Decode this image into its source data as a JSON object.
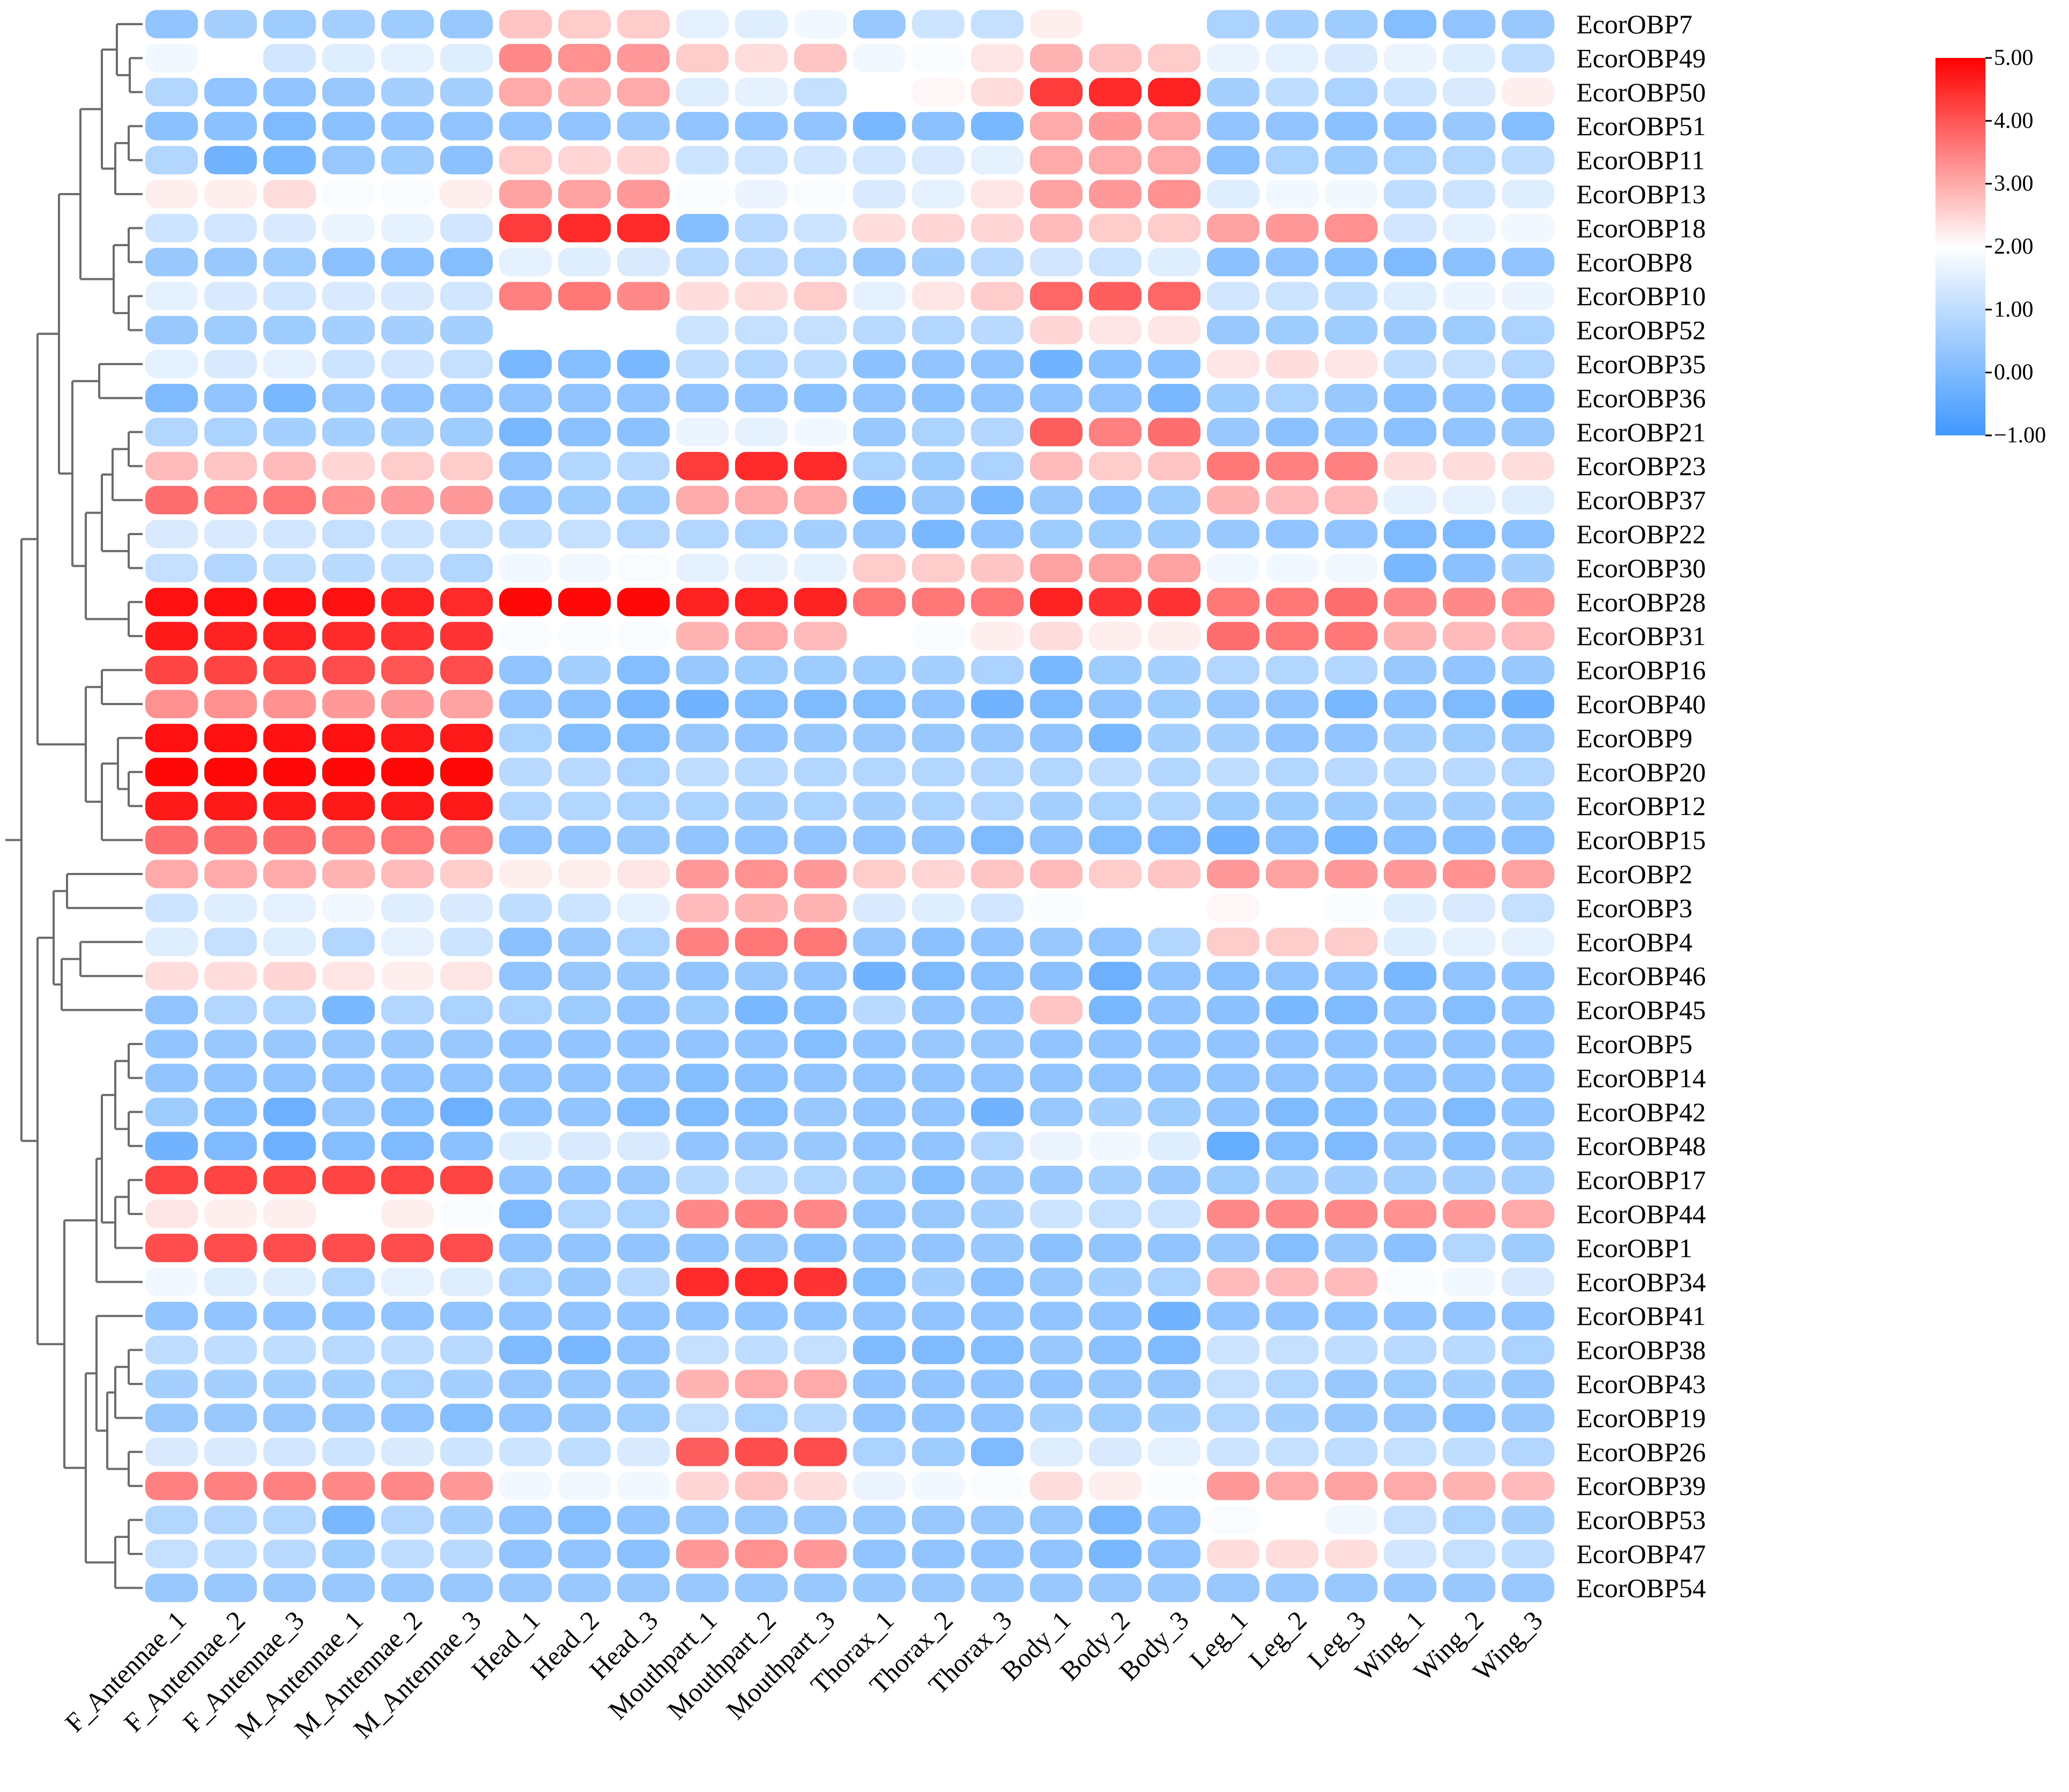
{
  "chart_data": {
    "type": "heatmap",
    "title": "",
    "colormap": {
      "low": "#3f98ff",
      "mid": "#ffffff",
      "high": "#ff0000",
      "min": -1.0,
      "mid_value": 2.0,
      "max": 5.0
    },
    "colorbar_ticks": [
      "5.00",
      "4.00",
      "3.00",
      "2.00",
      "1.00",
      "0.00",
      "−1.00"
    ],
    "colorbar_tick_values": [
      5,
      4,
      3,
      2,
      1,
      0,
      -1
    ],
    "columns": [
      "F_Antennae_1",
      "F_Antennae_2",
      "F_Antennae_3",
      "M_Antennae_1",
      "M_Antennae_2",
      "M_Antennae_3",
      "Head_1",
      "Head_2",
      "Head_3",
      "Mouthpart_1",
      "Mouthpart_2",
      "Mouthpart_3",
      "Thorax_1",
      "Thorax_2",
      "Thorax_3",
      "Body_1",
      "Body_2",
      "Body_3",
      "Leg_1",
      "Leg_2",
      "Leg_3",
      "Wing_1",
      "Wing_2",
      "Wing_3"
    ],
    "rows": [
      "EcorOBP7",
      "EcorOBP49",
      "EcorOBP50",
      "EcorOBP51",
      "EcorOBP11",
      "EcorOBP13",
      "EcorOBP18",
      "EcorOBP8",
      "EcorOBP10",
      "EcorOBP52",
      "EcorOBP35",
      "EcorOBP36",
      "EcorOBP21",
      "EcorOBP23",
      "EcorOBP37",
      "EcorOBP22",
      "EcorOBP30",
      "EcorOBP28",
      "EcorOBP31",
      "EcorOBP16",
      "EcorOBP40",
      "EcorOBP9",
      "EcorOBP20",
      "EcorOBP12",
      "EcorOBP15",
      "EcorOBP2",
      "EcorOBP3",
      "EcorOBP4",
      "EcorOBP46",
      "EcorOBP45",
      "EcorOBP5",
      "EcorOBP14",
      "EcorOBP42",
      "EcorOBP48",
      "EcorOBP17",
      "EcorOBP44",
      "EcorOBP1",
      "EcorOBP34",
      "EcorOBP41",
      "EcorOBP38",
      "EcorOBP43",
      "EcorOBP19",
      "EcorOBP26",
      "EcorOBP39",
      "EcorOBP53",
      "EcorOBP47",
      "EcorOBP54"
    ],
    "values": [
      [
        0.3,
        0.6,
        0.5,
        0.6,
        0.5,
        0.4,
        2.7,
        2.6,
        2.6,
        1.6,
        1.5,
        1.8,
        0.4,
        1.2,
        1.1,
        2.2,
        2.0,
        2.0,
        0.7,
        0.6,
        0.5,
        0.1,
        0.3,
        0.4
      ],
      [
        1.8,
        2.0,
        1.3,
        1.5,
        1.6,
        1.5,
        3.4,
        3.3,
        3.2,
        2.6,
        2.4,
        2.7,
        1.8,
        1.9,
        2.3,
        2.9,
        2.7,
        2.6,
        1.7,
        1.6,
        1.4,
        1.7,
        1.5,
        1.0
      ],
      [
        0.8,
        0.3,
        0.3,
        0.4,
        0.6,
        0.6,
        3.0,
        2.9,
        3.0,
        1.5,
        1.6,
        1.1,
        2.0,
        2.1,
        2.4,
        4.3,
        4.5,
        4.6,
        0.6,
        1.0,
        0.7,
        1.2,
        1.4,
        2.2
      ],
      [
        0.2,
        0.2,
        0.0,
        0.2,
        0.3,
        0.3,
        0.3,
        0.3,
        0.4,
        0.3,
        0.3,
        0.3,
        -0.1,
        0.2,
        -0.1,
        3.0,
        3.2,
        3.0,
        0.3,
        0.3,
        0.2,
        0.3,
        0.4,
        0.1
      ],
      [
        0.8,
        -0.2,
        -0.1,
        0.4,
        0.5,
        0.2,
        2.6,
        2.5,
        2.5,
        1.2,
        1.2,
        1.3,
        1.3,
        1.4,
        1.6,
        3.0,
        3.0,
        3.0,
        0.2,
        0.7,
        0.5,
        0.7,
        0.8,
        1.0
      ],
      [
        2.2,
        2.2,
        2.4,
        1.9,
        1.9,
        2.2,
        3.1,
        3.1,
        3.2,
        1.9,
        1.7,
        1.9,
        1.4,
        1.6,
        2.3,
        3.1,
        3.2,
        3.3,
        1.5,
        1.8,
        1.8,
        1.0,
        1.2,
        1.5
      ],
      [
        1.2,
        1.3,
        1.4,
        1.7,
        1.6,
        1.3,
        4.3,
        4.5,
        4.5,
        0.1,
        0.9,
        1.2,
        2.4,
        2.5,
        2.5,
        2.8,
        2.6,
        2.6,
        3.1,
        3.2,
        3.3,
        1.3,
        1.6,
        1.8
      ],
      [
        0.4,
        0.4,
        0.5,
        0.2,
        0.2,
        0.1,
        1.6,
        1.5,
        1.4,
        0.9,
        0.9,
        0.8,
        0.4,
        0.6,
        0.9,
        1.3,
        1.2,
        1.5,
        0.2,
        0.3,
        0.2,
        0.0,
        0.2,
        0.3
      ],
      [
        1.6,
        1.4,
        1.3,
        1.4,
        1.4,
        1.3,
        3.5,
        3.6,
        3.4,
        2.4,
        2.4,
        2.6,
        1.6,
        2.3,
        2.6,
        3.8,
        3.9,
        3.8,
        1.3,
        1.2,
        1.0,
        1.5,
        1.7,
        1.7
      ],
      [
        0.4,
        0.5,
        0.5,
        0.6,
        0.6,
        0.6,
        2.0,
        2.0,
        2.0,
        1.2,
        1.1,
        1.1,
        0.9,
        0.8,
        0.9,
        2.5,
        2.3,
        2.3,
        0.4,
        0.5,
        0.5,
        0.4,
        0.5,
        0.7
      ],
      [
        1.6,
        1.4,
        1.6,
        1.2,
        1.3,
        1.1,
        -0.1,
        0.1,
        -0.1,
        1.0,
        0.8,
        1.0,
        0.2,
        0.3,
        0.3,
        -0.2,
        0.2,
        0.2,
        2.3,
        2.4,
        2.3,
        1.0,
        1.1,
        0.8
      ],
      [
        0.0,
        0.3,
        -0.1,
        0.4,
        0.3,
        0.3,
        0.3,
        0.3,
        0.3,
        0.3,
        0.3,
        0.2,
        0.3,
        0.2,
        0.3,
        0.3,
        0.3,
        -0.1,
        0.5,
        0.7,
        0.4,
        0.2,
        0.3,
        0.2
      ],
      [
        0.8,
        0.7,
        0.6,
        0.6,
        0.6,
        0.5,
        -0.1,
        0.2,
        0.2,
        1.7,
        1.6,
        1.8,
        0.4,
        0.7,
        0.8,
        3.9,
        3.5,
        3.7,
        0.4,
        0.2,
        0.3,
        0.2,
        0.3,
        0.4
      ],
      [
        2.8,
        2.7,
        2.8,
        2.5,
        2.6,
        2.6,
        0.3,
        0.8,
        0.9,
        4.3,
        4.5,
        4.5,
        0.7,
        0.5,
        0.7,
        2.8,
        2.6,
        2.7,
        3.6,
        3.5,
        3.5,
        2.4,
        2.4,
        2.4
      ],
      [
        3.7,
        3.6,
        3.6,
        3.3,
        3.2,
        3.2,
        0.3,
        0.5,
        0.5,
        3.0,
        3.0,
        3.0,
        -0.1,
        0.4,
        -0.1,
        0.4,
        0.3,
        0.5,
        2.9,
        2.8,
        2.8,
        1.6,
        1.6,
        1.5
      ],
      [
        1.4,
        1.4,
        1.3,
        1.1,
        1.2,
        1.1,
        1.0,
        1.1,
        0.8,
        0.8,
        0.7,
        0.6,
        0.4,
        -0.1,
        0.3,
        0.5,
        0.5,
        0.5,
        0.4,
        0.3,
        0.3,
        0.0,
        0.0,
        0.2
      ],
      [
        1.1,
        0.8,
        1.0,
        0.9,
        1.0,
        0.8,
        1.8,
        1.8,
        1.9,
        1.6,
        1.6,
        1.6,
        2.6,
        2.6,
        2.7,
        3.1,
        3.1,
        3.1,
        1.8,
        1.8,
        1.8,
        -0.1,
        0.2,
        0.6
      ],
      [
        4.8,
        4.8,
        4.8,
        4.8,
        4.6,
        4.5,
        4.9,
        4.9,
        4.9,
        4.6,
        4.6,
        4.6,
        3.6,
        3.6,
        3.6,
        4.6,
        4.4,
        4.4,
        3.6,
        3.6,
        3.7,
        3.4,
        3.4,
        3.3
      ],
      [
        4.7,
        4.6,
        4.6,
        4.5,
        4.4,
        4.4,
        1.9,
        1.9,
        1.9,
        2.9,
        3.0,
        2.8,
        2.0,
        1.9,
        2.2,
        2.4,
        2.2,
        2.2,
        3.7,
        3.6,
        3.6,
        2.9,
        2.8,
        2.8
      ],
      [
        4.2,
        4.2,
        4.2,
        4.1,
        4.0,
        4.1,
        0.3,
        0.6,
        0.1,
        0.4,
        0.5,
        0.5,
        0.5,
        0.6,
        0.7,
        -0.1,
        0.5,
        0.6,
        0.8,
        0.8,
        0.8,
        0.4,
        0.3,
        0.4
      ],
      [
        3.3,
        3.3,
        3.3,
        3.2,
        3.2,
        3.1,
        0.3,
        0.2,
        -0.1,
        -0.2,
        0.1,
        0.0,
        0.1,
        0.3,
        -0.2,
        0.0,
        0.3,
        0.5,
        0.4,
        0.3,
        -0.1,
        0.2,
        0.0,
        -0.2
      ],
      [
        4.8,
        4.8,
        4.8,
        4.8,
        4.7,
        4.7,
        0.7,
        0.1,
        0.1,
        0.4,
        0.3,
        0.4,
        0.4,
        0.4,
        0.4,
        0.3,
        -0.1,
        0.6,
        0.6,
        0.3,
        0.3,
        0.6,
        0.5,
        0.4
      ],
      [
        4.9,
        4.9,
        4.9,
        4.9,
        4.9,
        4.9,
        0.9,
        0.9,
        0.7,
        1.0,
        0.9,
        0.8,
        0.8,
        0.8,
        0.8,
        0.8,
        1.0,
        0.8,
        1.0,
        0.8,
        0.9,
        0.9,
        0.9,
        0.8
      ],
      [
        4.7,
        4.7,
        4.7,
        4.7,
        4.7,
        4.7,
        0.8,
        0.8,
        0.7,
        0.7,
        0.6,
        0.7,
        0.6,
        0.7,
        0.8,
        0.6,
        0.7,
        0.8,
        0.5,
        0.5,
        0.5,
        0.6,
        0.6,
        0.5
      ],
      [
        3.7,
        3.7,
        3.7,
        3.6,
        3.6,
        3.5,
        0.3,
        0.3,
        0.4,
        0.3,
        0.3,
        0.3,
        0.3,
        0.3,
        0.0,
        0.3,
        0.1,
        0.0,
        -0.2,
        0.2,
        -0.1,
        0.2,
        0.2,
        0.2
      ],
      [
        3.0,
        3.0,
        3.0,
        2.9,
        2.8,
        2.6,
        2.2,
        2.2,
        2.3,
        3.2,
        3.3,
        3.2,
        2.6,
        2.5,
        2.7,
        2.8,
        2.6,
        2.7,
        3.2,
        3.1,
        3.2,
        3.2,
        3.3,
        3.1
      ],
      [
        1.2,
        1.5,
        1.6,
        1.8,
        1.5,
        1.4,
        1.0,
        1.2,
        1.6,
        2.8,
        2.9,
        2.9,
        1.4,
        1.5,
        1.3,
        1.9,
        2.0,
        2.0,
        2.1,
        2.0,
        1.9,
        1.5,
        1.4,
        1.1
      ],
      [
        1.5,
        1.1,
        1.5,
        0.8,
        1.6,
        1.2,
        0.2,
        0.4,
        0.7,
        3.5,
        3.6,
        3.6,
        0.4,
        0.2,
        0.3,
        0.4,
        0.3,
        0.8,
        2.6,
        2.6,
        2.6,
        1.5,
        1.6,
        1.6
      ],
      [
        2.4,
        2.4,
        2.5,
        2.3,
        2.2,
        2.3,
        0.3,
        0.4,
        0.4,
        0.3,
        0.4,
        0.3,
        -0.2,
        0.0,
        0.2,
        0.2,
        -0.3,
        0.3,
        0.2,
        0.3,
        0.3,
        -0.1,
        0.3,
        0.3
      ],
      [
        0.3,
        0.8,
        0.8,
        -0.1,
        0.8,
        0.7,
        0.7,
        0.5,
        0.3,
        0.5,
        -0.1,
        0.1,
        0.9,
        0.3,
        0.3,
        2.7,
        -0.1,
        0.3,
        0.2,
        -0.1,
        0.0,
        0.3,
        0.1,
        0.3
      ],
      [
        0.3,
        0.4,
        0.4,
        0.4,
        0.4,
        0.4,
        0.3,
        0.3,
        0.3,
        0.3,
        0.3,
        0.1,
        0.3,
        0.4,
        0.4,
        0.3,
        0.3,
        0.3,
        0.3,
        0.3,
        0.3,
        0.3,
        0.3,
        0.3
      ],
      [
        0.3,
        0.3,
        0.3,
        0.3,
        0.3,
        0.3,
        0.3,
        0.3,
        0.3,
        0.1,
        0.2,
        0.3,
        0.3,
        0.3,
        0.3,
        0.3,
        0.3,
        0.3,
        0.3,
        0.3,
        0.3,
        0.3,
        0.3,
        0.3
      ],
      [
        0.5,
        0.1,
        -0.3,
        0.4,
        0.1,
        -0.3,
        0.2,
        0.3,
        0.0,
        0.0,
        0.1,
        0.4,
        0.3,
        0.3,
        -0.2,
        0.4,
        0.6,
        0.5,
        0.3,
        0.0,
        0.1,
        0.3,
        0.0,
        0.3
      ],
      [
        -0.2,
        0.0,
        -0.3,
        0.1,
        0.0,
        0.2,
        1.5,
        1.4,
        1.4,
        0.3,
        0.4,
        0.4,
        0.3,
        0.3,
        0.8,
        1.7,
        1.8,
        1.5,
        -0.4,
        0.1,
        0.0,
        0.4,
        0.2,
        0.4
      ],
      [
        4.2,
        4.2,
        4.2,
        4.2,
        4.2,
        4.2,
        0.3,
        0.3,
        0.4,
        0.9,
        1.0,
        0.8,
        0.5,
        0.1,
        0.4,
        0.4,
        0.6,
        0.4,
        0.5,
        0.6,
        0.6,
        0.6,
        0.6,
        0.6
      ],
      [
        2.3,
        2.2,
        2.2,
        2.0,
        2.2,
        1.9,
        0.0,
        0.8,
        0.7,
        3.4,
        3.5,
        3.4,
        0.3,
        0.4,
        0.6,
        1.2,
        1.1,
        1.2,
        3.4,
        3.4,
        3.4,
        3.3,
        3.2,
        3.0
      ],
      [
        4.1,
        4.1,
        4.1,
        4.1,
        4.1,
        4.1,
        0.3,
        0.3,
        0.3,
        0.3,
        0.4,
        0.2,
        0.3,
        0.3,
        0.4,
        0.2,
        0.3,
        0.3,
        0.4,
        0.1,
        0.4,
        0.2,
        0.8,
        0.5
      ],
      [
        1.8,
        1.5,
        1.5,
        0.8,
        1.6,
        1.5,
        0.7,
        0.4,
        0.9,
        4.5,
        4.5,
        4.4,
        0.1,
        0.6,
        0.2,
        0.4,
        0.6,
        0.7,
        2.8,
        2.8,
        2.8,
        1.9,
        1.8,
        1.4
      ],
      [
        0.3,
        0.3,
        0.3,
        0.3,
        0.3,
        0.3,
        0.3,
        0.3,
        0.3,
        0.3,
        0.3,
        0.3,
        0.3,
        0.3,
        0.3,
        0.3,
        0.3,
        -0.2,
        0.3,
        0.3,
        0.3,
        0.3,
        0.3,
        0.3
      ],
      [
        1.0,
        1.0,
        1.0,
        0.9,
        1.0,
        0.9,
        0.0,
        -0.1,
        0.3,
        1.1,
        1.0,
        1.1,
        0.0,
        0.0,
        0.1,
        0.4,
        0.2,
        0.0,
        1.2,
        1.1,
        1.0,
        0.9,
        0.9,
        0.7
      ],
      [
        0.6,
        0.6,
        0.6,
        0.6,
        0.7,
        0.6,
        0.4,
        0.4,
        0.4,
        2.9,
        3.0,
        3.0,
        0.3,
        0.3,
        0.3,
        0.3,
        0.4,
        0.4,
        1.1,
        0.8,
        0.4,
        0.5,
        0.6,
        0.4
      ],
      [
        0.4,
        0.4,
        0.4,
        0.4,
        0.3,
        0.1,
        0.3,
        0.4,
        0.5,
        1.1,
        0.7,
        0.9,
        0.3,
        0.3,
        0.3,
        0.6,
        0.5,
        0.6,
        0.8,
        0.6,
        0.4,
        0.4,
        0.2,
        0.4
      ],
      [
        1.4,
        1.4,
        1.3,
        1.2,
        1.4,
        1.2,
        1.2,
        1.0,
        1.4,
        3.9,
        4.1,
        4.1,
        0.7,
        0.5,
        0.0,
        1.5,
        1.4,
        1.6,
        1.2,
        1.1,
        1.0,
        1.1,
        1.0,
        0.8
      ],
      [
        3.5,
        3.5,
        3.5,
        3.4,
        3.4,
        3.2,
        1.8,
        1.8,
        1.8,
        2.5,
        2.7,
        2.4,
        1.7,
        1.8,
        1.9,
        2.4,
        2.2,
        1.9,
        3.2,
        3.0,
        3.1,
        3.0,
        2.9,
        2.8
      ],
      [
        0.8,
        0.8,
        0.8,
        -0.1,
        0.8,
        0.6,
        0.3,
        0.1,
        0.3,
        0.4,
        0.4,
        0.4,
        0.4,
        0.4,
        0.4,
        0.4,
        -0.1,
        0.3,
        1.9,
        2.0,
        1.8,
        1.1,
        0.7,
        0.6
      ],
      [
        1.1,
        1.0,
        0.9,
        0.5,
        1.0,
        0.9,
        0.3,
        0.3,
        0.2,
        3.2,
        3.3,
        3.2,
        0.3,
        0.3,
        0.3,
        0.3,
        -0.1,
        0.3,
        2.4,
        2.4,
        2.4,
        1.3,
        1.1,
        1.0
      ],
      [
        0.4,
        0.4,
        0.4,
        0.4,
        0.4,
        0.4,
        0.4,
        0.4,
        0.4,
        0.4,
        0.4,
        0.4,
        0.4,
        0.4,
        0.4,
        0.4,
        0.4,
        0.4,
        0.4,
        0.4,
        0.4,
        0.4,
        0.4,
        0.4
      ]
    ],
    "row_dendrogram": [
      [
        "EcorOBP49",
        "EcorOBP50"
      ],
      [
        "EcorOBP51",
        "EcorOBP11"
      ],
      [
        "EcorOBP18",
        "EcorOBP8"
      ],
      [
        "EcorOBP10",
        "EcorOBP52"
      ],
      [
        "EcorOBP35",
        "EcorOBP36"
      ],
      [
        "EcorOBP21",
        "EcorOBP23"
      ],
      [
        "EcorOBP22",
        "EcorOBP30"
      ],
      [
        "EcorOBP28",
        "EcorOBP31"
      ],
      [
        "EcorOBP16",
        "EcorOBP40"
      ],
      [
        "EcorOBP20",
        "EcorOBP12"
      ],
      [
        "EcorOBP2",
        "EcorOBP3"
      ],
      [
        "EcorOBP4",
        "EcorOBP46"
      ],
      [
        "EcorOBP5",
        "EcorOBP14"
      ],
      [
        "EcorOBP42",
        "EcorOBP48"
      ],
      [
        "EcorOBP17",
        "EcorOBP44"
      ],
      [
        "EcorOBP38",
        "EcorOBP43"
      ],
      [
        "EcorOBP26",
        "EcorOBP39"
      ],
      [
        "EcorOBP53",
        "EcorOBP47"
      ]
    ]
  }
}
